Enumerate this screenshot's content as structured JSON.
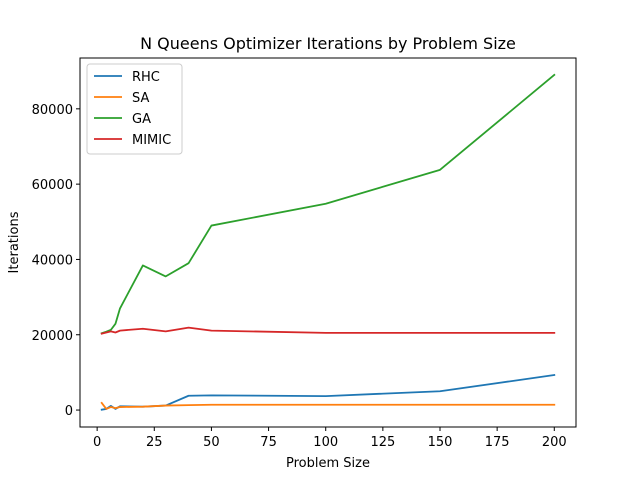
{
  "chart_data": {
    "type": "line",
    "title": "N Queens Optimizer Iterations by Problem Size",
    "xlabel": "Problem Size",
    "ylabel": "Iterations",
    "xlim": [
      -7.5,
      209.5
    ],
    "ylim": [
      -4500,
      93500
    ],
    "x_ticks": [
      0,
      25,
      50,
      75,
      100,
      125,
      150,
      175,
      200
    ],
    "y_ticks": [
      0,
      20000,
      40000,
      60000,
      80000
    ],
    "x_tick_labels": [
      "0",
      "25",
      "50",
      "75",
      "100",
      "125",
      "150",
      "175",
      "200"
    ],
    "y_tick_labels": [
      "0",
      "20000",
      "40000",
      "60000",
      "80000"
    ],
    "legend_position": "top-left",
    "grid": false,
    "series": [
      {
        "name": "RHC",
        "color": "#1f77b4",
        "x": [
          2,
          4,
          6,
          8,
          10,
          20,
          30,
          40,
          50,
          100,
          150,
          200
        ],
        "y": [
          100,
          300,
          1100,
          300,
          1000,
          900,
          1200,
          3800,
          3900,
          3700,
          5000,
          9300
        ]
      },
      {
        "name": "SA",
        "color": "#ff7f0e",
        "x": [
          2,
          4,
          6,
          8,
          10,
          20,
          30,
          40,
          50,
          100,
          150,
          200
        ],
        "y": [
          1900,
          300,
          800,
          500,
          800,
          900,
          1200,
          1300,
          1400,
          1400,
          1400,
          1400
        ]
      },
      {
        "name": "GA",
        "color": "#2ca02c",
        "x": [
          2,
          4,
          6,
          8,
          10,
          20,
          30,
          40,
          50,
          100,
          150,
          200
        ],
        "y": [
          20400,
          20800,
          21300,
          22900,
          27000,
          38400,
          35500,
          39000,
          49000,
          54800,
          63800,
          89000
        ]
      },
      {
        "name": "MIMIC",
        "color": "#d62728",
        "x": [
          2,
          4,
          6,
          8,
          10,
          20,
          30,
          40,
          50,
          100,
          150,
          200
        ],
        "y": [
          20300,
          20600,
          20900,
          20600,
          21100,
          21600,
          20900,
          21900,
          21100,
          20500,
          20500,
          20500
        ]
      }
    ]
  }
}
